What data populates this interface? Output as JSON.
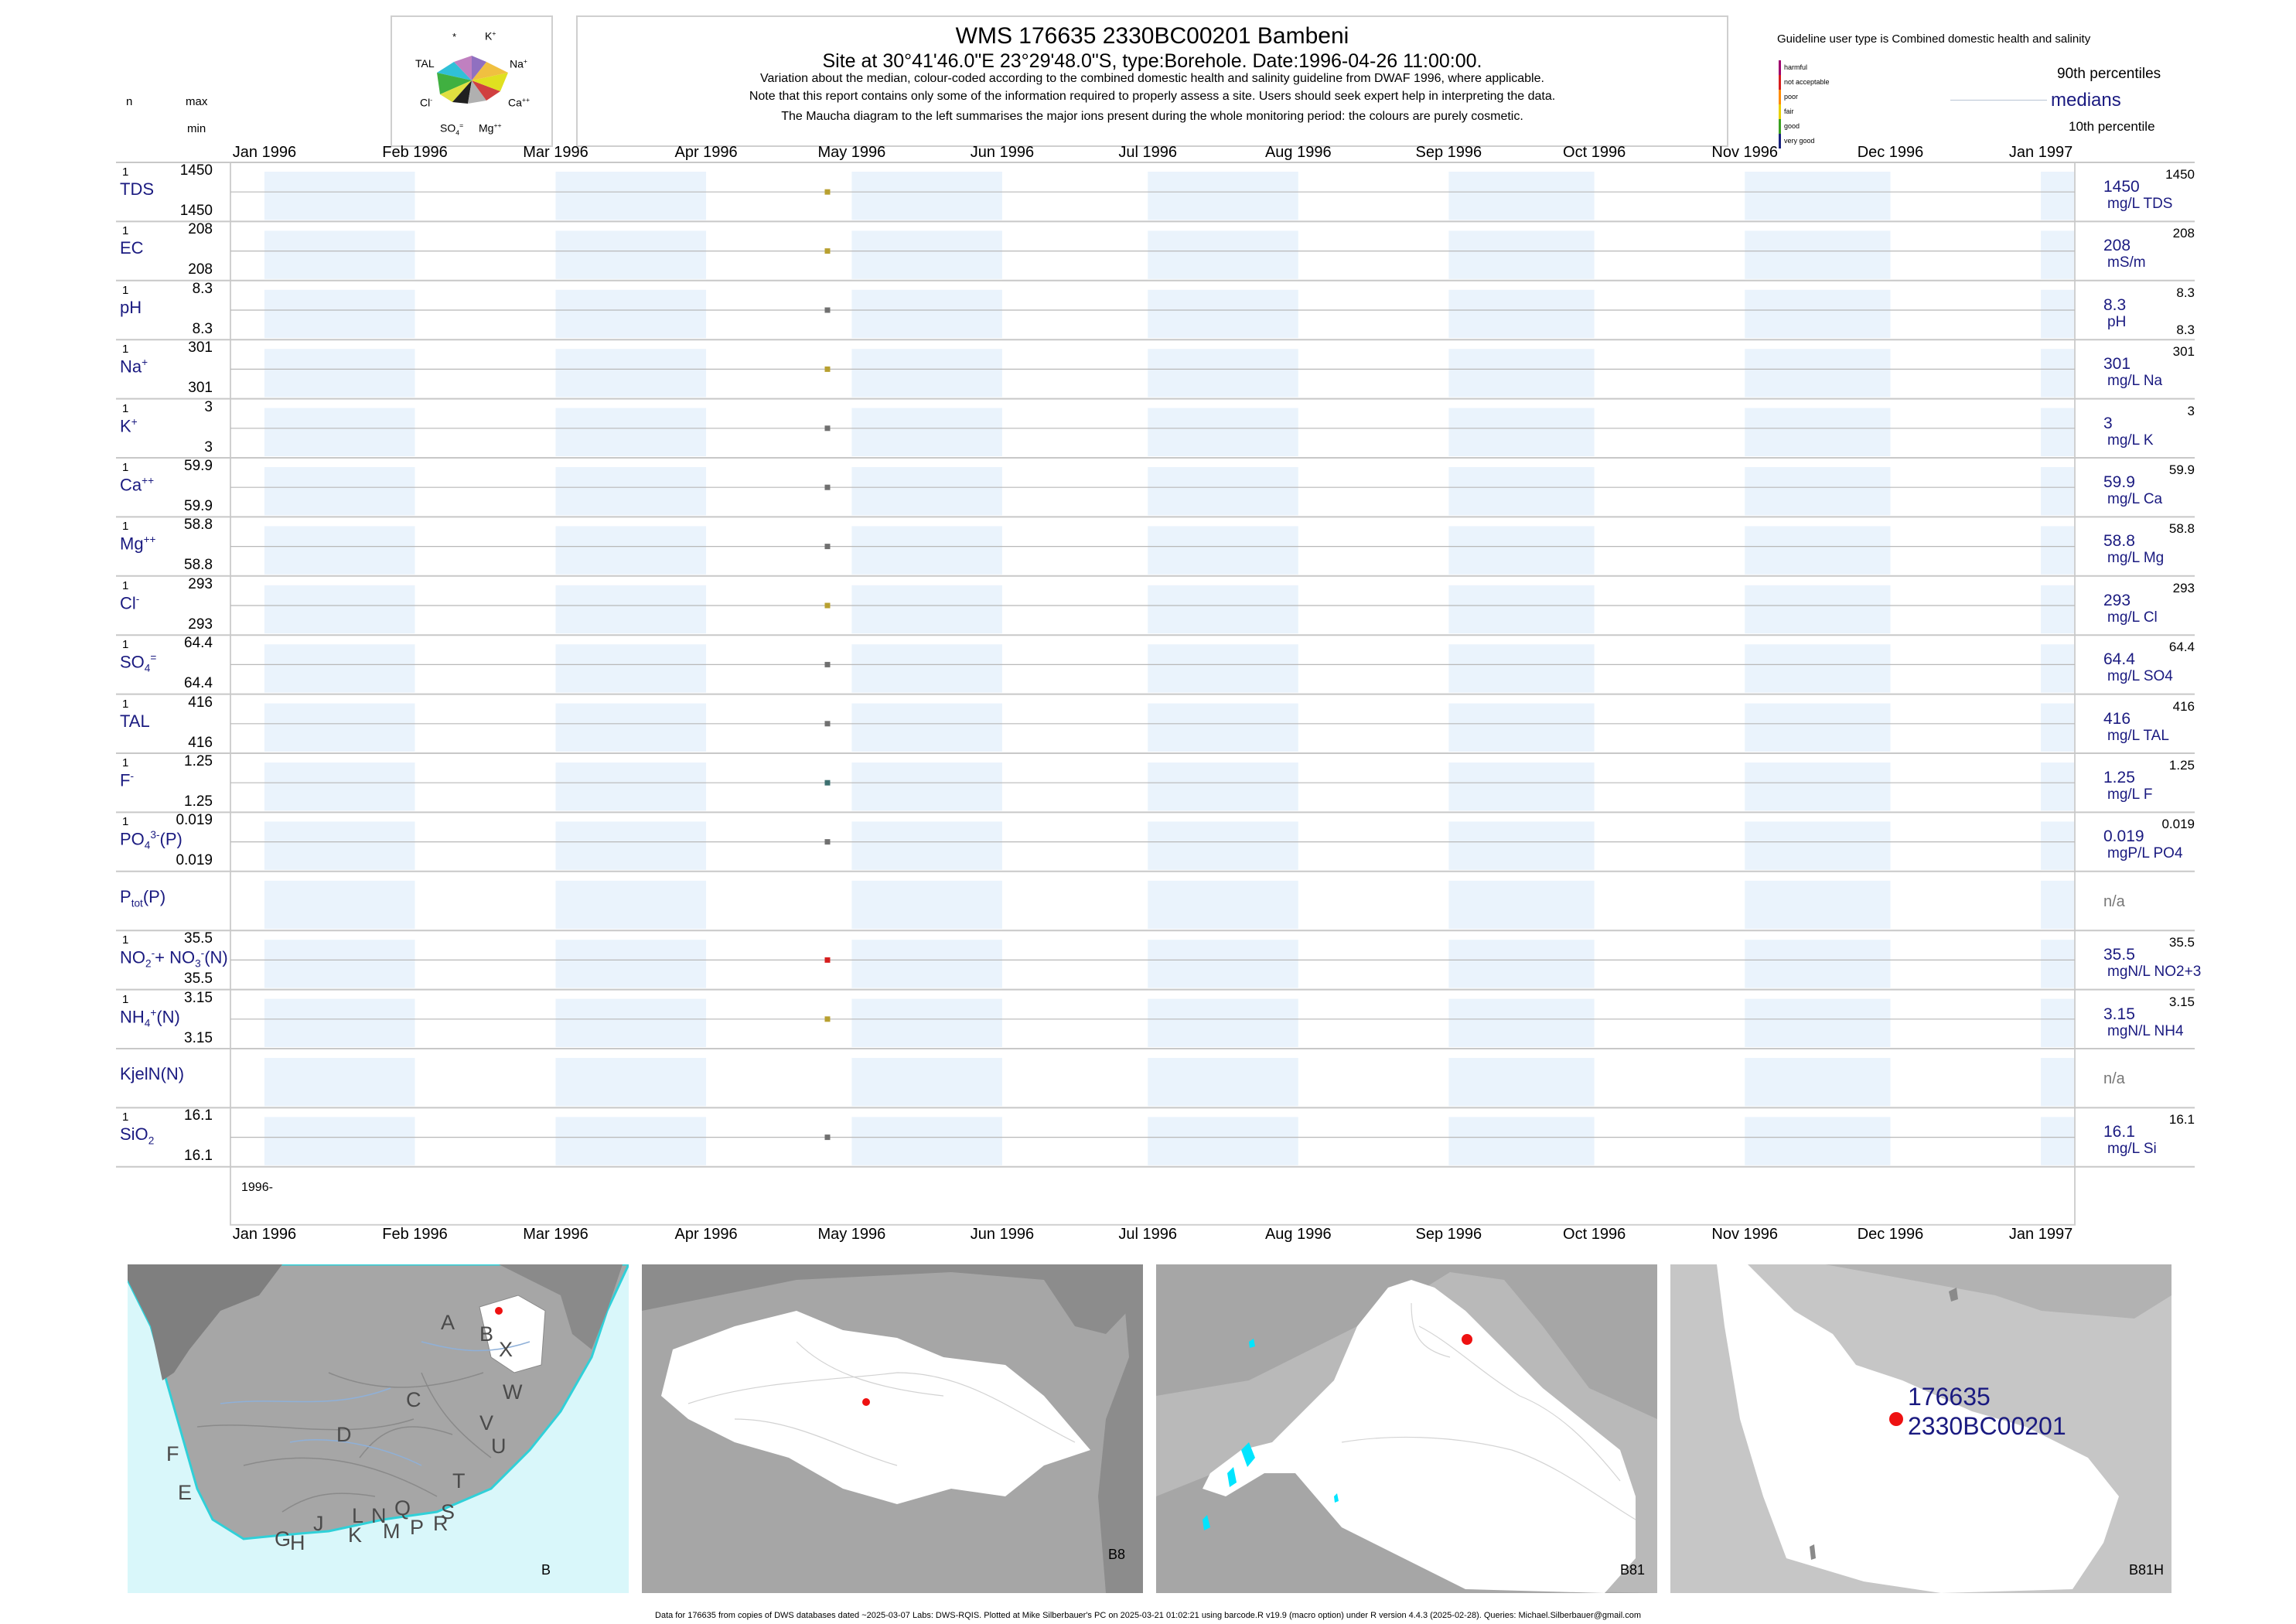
{
  "header": {
    "title": "WMS 176635 2330BC00201 Bambeni",
    "subtitle": "Site at 30°41'46.0\"E 23°29'48.0\"S, type:Borehole. Date:1996-04-26 11:00:00.",
    "line1": "Variation about the median,  colour-coded according to the combined domestic health and salinity guideline from DWAF 1996, where applicable.",
    "line2": "Note that this report contains only some of the information required to properly assess a site. Users should seek expert help in interpreting the data.",
    "line3": "The Maucha diagram to the left summarises the major ions present during the whole monitoring period: the colours are purely cosmetic.",
    "col_n": "n",
    "col_max": "max",
    "col_min": "min"
  },
  "maucha": {
    "labels": [
      "*",
      "K+",
      "TAL",
      "Na+",
      "Cl-",
      "Ca++",
      "SO4=",
      "Mg++"
    ]
  },
  "legend": {
    "guideline_title": "Guideline user type is Combined domestic health and salinity",
    "classes": [
      {
        "label": "harmful",
        "color": "#a0006e"
      },
      {
        "label": "not acceptable",
        "color": "#d61e1e"
      },
      {
        "label": "poor",
        "color": "#ff8c00"
      },
      {
        "label": "fair",
        "color": "#e8d000"
      },
      {
        "label": "good",
        "color": "#3aa020"
      },
      {
        "label": "very good",
        "color": "#1a237e"
      }
    ],
    "p90": "90th percentiles",
    "medians": "medians",
    "p10": "10th percentile"
  },
  "chart_data": {
    "type": "scatter",
    "x_axis": {
      "months": [
        "Jan 1996",
        "Feb 1996",
        "Mar 1996",
        "Apr 1996",
        "May 1996",
        "Jun 1996",
        "Jul 1996",
        "Aug 1996",
        "Sep 1996",
        "Oct 1996",
        "Nov 1996",
        "Dec 1996",
        "Jan 1997"
      ],
      "range": [
        "1995-12-25",
        "1997-01-08"
      ],
      "year_label": "1996-"
    },
    "sample_date": "1996-04-26",
    "series": [
      {
        "name": "TDS",
        "html": "TDS",
        "n": "1",
        "max": "1450",
        "min": "1450",
        "median": "1450",
        "unit": "mg/L TDS",
        "p90": "1450",
        "p10": "",
        "value": 1450,
        "color": "#b8a030"
      },
      {
        "name": "EC",
        "html": "EC",
        "n": "1",
        "max": "208",
        "min": "208",
        "median": "208",
        "unit": "mS/m",
        "p90": "208",
        "p10": "",
        "value": 208,
        "color": "#b8a030"
      },
      {
        "name": "pH",
        "html": "pH",
        "n": "1",
        "max": "8.3",
        "min": "8.3",
        "median": "8.3",
        "unit": "pH",
        "p90": "8.3",
        "p10": "8.3",
        "value": 8.3,
        "color": "#707070"
      },
      {
        "name": "Na+",
        "html": "Na<sup>+</sup>",
        "n": "1",
        "max": "301",
        "min": "301",
        "median": "301",
        "unit": "mg/L Na",
        "p90": "301",
        "p10": "",
        "value": 301,
        "color": "#b8a030"
      },
      {
        "name": "K+",
        "html": "K<sup>+</sup>",
        "n": "1",
        "max": "3",
        "min": "3",
        "median": "3",
        "unit": "mg/L K",
        "p90": "3",
        "p10": "",
        "value": 3,
        "color": "#707070"
      },
      {
        "name": "Ca++",
        "html": "Ca<sup>++</sup>",
        "n": "1",
        "max": "59.9",
        "min": "59.9",
        "median": "59.9",
        "unit": "mg/L Ca",
        "p90": "59.9",
        "p10": "",
        "value": 59.9,
        "color": "#707070"
      },
      {
        "name": "Mg++",
        "html": "Mg<sup>++</sup>",
        "n": "1",
        "max": "58.8",
        "min": "58.8",
        "median": "58.8",
        "unit": "mg/L Mg",
        "p90": "58.8",
        "p10": "",
        "value": 58.8,
        "color": "#707070"
      },
      {
        "name": "Cl-",
        "html": "Cl<sup>-</sup>",
        "n": "1",
        "max": "293",
        "min": "293",
        "median": "293",
        "unit": "mg/L Cl",
        "p90": "293",
        "p10": "",
        "value": 293,
        "color": "#b8a030"
      },
      {
        "name": "SO4=",
        "html": "SO<sub>4</sub><sup>=</sup>",
        "n": "1",
        "max": "64.4",
        "min": "64.4",
        "median": "64.4",
        "unit": "mg/L SO4",
        "p90": "64.4",
        "p10": "",
        "value": 64.4,
        "color": "#707070"
      },
      {
        "name": "TAL",
        "html": "TAL",
        "n": "1",
        "max": "416",
        "min": "416",
        "median": "416",
        "unit": "mg/L TAL",
        "p90": "416",
        "p10": "",
        "value": 416,
        "color": "#707070"
      },
      {
        "name": "F-",
        "html": "F<sup>-</sup>",
        "n": "1",
        "max": "1.25",
        "min": "1.25",
        "median": "1.25",
        "unit": "mg/L F",
        "p90": "1.25",
        "p10": "",
        "value": 1.25,
        "color": "#3d7070"
      },
      {
        "name": "PO4(P)",
        "html": "PO<sub>4</sub><sup>3-</sup>(P)",
        "n": "1",
        "max": "0.019",
        "min": "0.019",
        "median": "0.019",
        "unit": "mgP/L PO4",
        "p90": "0.019",
        "p10": "",
        "value": 0.019,
        "color": "#707070"
      },
      {
        "name": "Ptot(P)",
        "html": "P<sub>tot</sub>(P)",
        "n": "",
        "max": "",
        "min": "",
        "median": "n/a",
        "unit": "",
        "p90": "",
        "p10": "",
        "value": null,
        "color": ""
      },
      {
        "name": "NO2+NO3(N)",
        "html": "NO<sub>2</sub><sup>-</sup>+ NO<sub>3</sub><sup>-</sup>(N)",
        "n": "1",
        "max": "35.5",
        "min": "35.5",
        "median": "35.5",
        "unit": "mgN/L NO2+3",
        "p90": "35.5",
        "p10": "",
        "value": 35.5,
        "color": "#d61e1e"
      },
      {
        "name": "NH4(N)",
        "html": "NH<sub>4</sub><sup>+</sup>(N)",
        "n": "1",
        "max": "3.15",
        "min": "3.15",
        "median": "3.15",
        "unit": "mgN/L NH4",
        "p90": "3.15",
        "p10": "",
        "value": 3.15,
        "color": "#b8a030"
      },
      {
        "name": "KjelN(N)",
        "html": "KjelN(N)",
        "n": "",
        "max": "",
        "min": "",
        "median": "n/a",
        "unit": "",
        "p90": "",
        "p10": "",
        "value": null,
        "color": ""
      },
      {
        "name": "SiO2",
        "html": "SiO<sub>2</sub>",
        "n": "1",
        "max": "16.1",
        "min": "16.1",
        "median": "16.1",
        "unit": "mg/L Si",
        "p90": "16.1",
        "p10": "",
        "value": 16.1,
        "color": "#707070"
      }
    ]
  },
  "maps": [
    {
      "label": "B",
      "region_letters": [
        "A",
        "B",
        "X",
        "W",
        "C",
        "V",
        "D",
        "U",
        "F",
        "T",
        "E",
        "S",
        "L",
        "N",
        "Q",
        "R",
        "J",
        "K",
        "M",
        "P",
        "G",
        "H"
      ]
    },
    {
      "label": "B8"
    },
    {
      "label": "B81"
    },
    {
      "label": "B81H",
      "site_id": "176635",
      "site_code": "2330BC00201"
    }
  ],
  "footer": "Data for 176635 from copies of DWS databases dated ~2025-03-07 Labs: DWS-RQIS. Plotted at Mike Silberbauer's PC on 2025-03-21 01:02:21 using barcode.R v19.9 (macro option) under R version 4.4.3 (2025-02-28). Queries: Michael.Silberbauer@gmail.com"
}
